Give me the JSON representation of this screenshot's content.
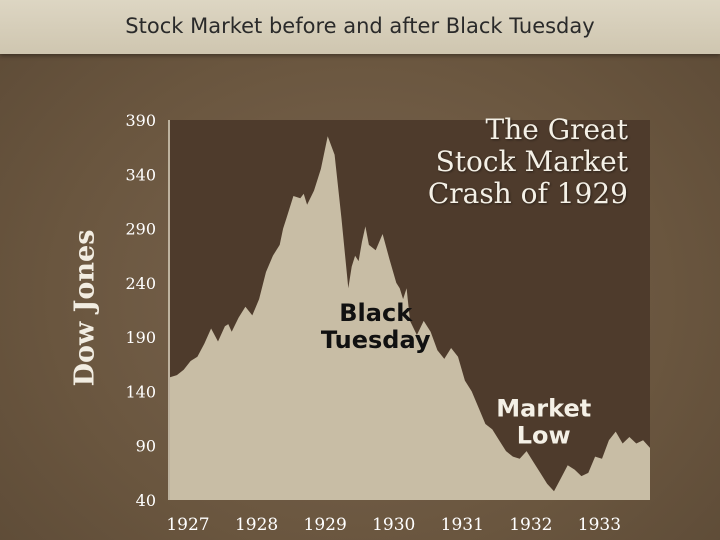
{
  "slide": {
    "header": "Stock Market before and after Black Tuesday",
    "big_title": [
      "The Great",
      "Stock Market",
      "Crash of 1929"
    ]
  },
  "chart_data": {
    "type": "area",
    "title": "Stock Market before and after Black Tuesday",
    "ylabel": "Dow Jones",
    "xlabel": "",
    "ylim": [
      40,
      390
    ],
    "xlim": [
      1927,
      1934
    ],
    "yticks": [
      390,
      340,
      290,
      240,
      190,
      140,
      90,
      40
    ],
    "xticks": [
      1927,
      1928,
      1929,
      1930,
      1931,
      1932,
      1933
    ],
    "grid": false,
    "colors": {
      "area": "#c8bda5",
      "background": "#4e3b2c"
    },
    "series": [
      {
        "x": [
          1927.0,
          1927.1,
          1927.2,
          1927.3,
          1927.4,
          1927.5,
          1927.6,
          1927.7,
          1927.8,
          1927.85,
          1927.9,
          1928.0,
          1928.1,
          1928.2,
          1928.3,
          1928.4,
          1928.5,
          1928.6,
          1928.65,
          1928.7,
          1928.8,
          1928.9,
          1928.95,
          1929.0,
          1929.1,
          1929.2,
          1929.3,
          1929.4,
          1929.5,
          1929.6,
          1929.65,
          1929.7,
          1929.75,
          1929.8,
          1929.85,
          1929.9,
          1930.0,
          1930.1,
          1930.2,
          1930.3,
          1930.35,
          1930.4,
          1930.45,
          1930.5,
          1930.6,
          1930.7,
          1930.8,
          1930.9,
          1931.0,
          1931.1,
          1931.2,
          1931.3,
          1931.4,
          1931.5,
          1931.6,
          1931.7,
          1931.8,
          1931.9,
          1932.0,
          1932.1,
          1932.2,
          1932.3,
          1932.4,
          1932.5,
          1932.6,
          1932.7,
          1932.8,
          1932.9,
          1933.0,
          1933.1,
          1933.2,
          1933.3,
          1933.4,
          1933.5,
          1933.6,
          1933.7,
          1933.8,
          1933.9,
          1934.0
        ],
        "values": [
          153,
          155,
          160,
          168,
          172,
          184,
          198,
          186,
          200,
          202,
          195,
          208,
          218,
          210,
          225,
          250,
          265,
          275,
          290,
          300,
          320,
          318,
          322,
          312,
          325,
          345,
          375,
          358,
          300,
          235,
          255,
          265,
          260,
          278,
          292,
          275,
          270,
          285,
          262,
          240,
          235,
          225,
          235,
          205,
          192,
          205,
          195,
          178,
          170,
          180,
          172,
          150,
          140,
          125,
          110,
          105,
          95,
          85,
          80,
          78,
          85,
          75,
          65,
          55,
          48,
          60,
          72,
          68,
          62,
          65,
          80,
          78,
          95,
          103,
          92,
          98,
          92,
          95,
          88
        ]
      }
    ],
    "annotations": [
      {
        "text": [
          "Black",
          "Tuesday"
        ],
        "x": 1930.0,
        "y": 205,
        "color": "#111111"
      },
      {
        "text": [
          "Market",
          "Low"
        ],
        "x": 1932.45,
        "y": 117,
        "color": "#f4f0e6"
      }
    ]
  }
}
